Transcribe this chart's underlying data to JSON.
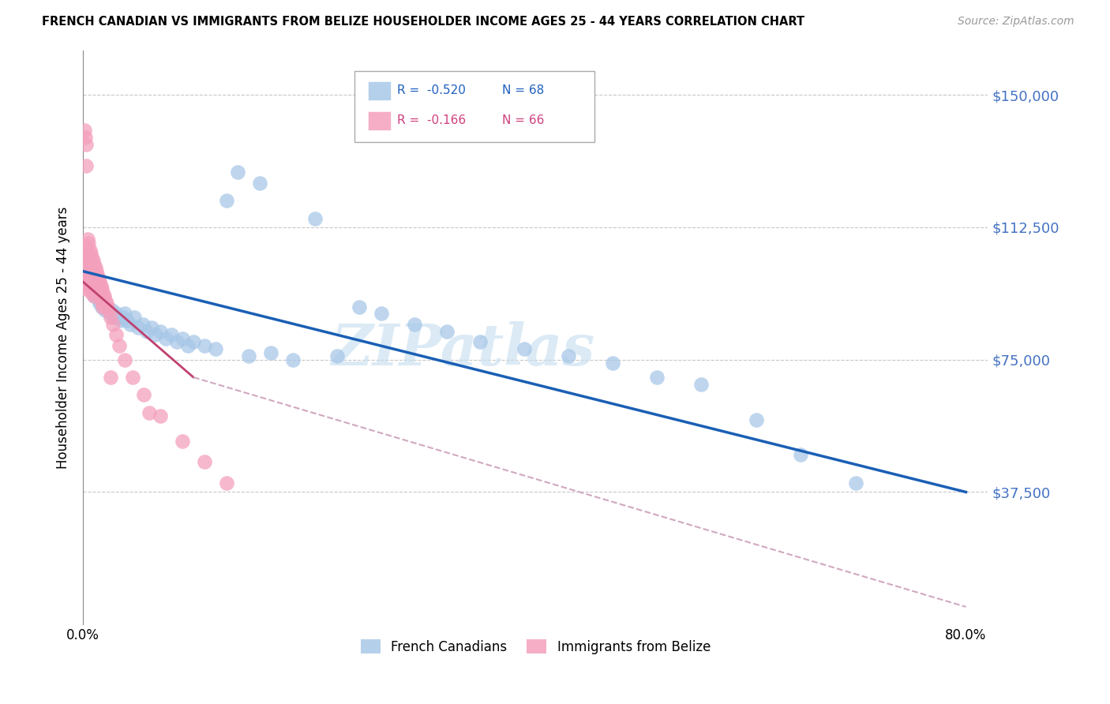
{
  "title": "FRENCH CANADIAN VS IMMIGRANTS FROM BELIZE HOUSEHOLDER INCOME AGES 25 - 44 YEARS CORRELATION CHART",
  "source": "Source: ZipAtlas.com",
  "ylabel": "Householder Income Ages 25 - 44 years",
  "y_tick_labels": [
    "$150,000",
    "$112,500",
    "$75,000",
    "$37,500"
  ],
  "y_tick_values": [
    150000,
    112500,
    75000,
    37500
  ],
  "ylim_max": 162500,
  "xlim_max": 0.82,
  "legend_blue_R": "-0.520",
  "legend_blue_N": "68",
  "legend_pink_R": "-0.166",
  "legend_pink_N": "66",
  "blue_color": "#a8c8e8",
  "pink_color": "#f4a0bc",
  "regression_blue_color": "#1a5fb4",
  "regression_pink_solid_color": "#c04070",
  "regression_pink_dashed_color": "#d0a8c0",
  "watermark_text": "ZIPatlas",
  "watermark_color": "#c8dff0",
  "blue_x": [
    0.002,
    0.003,
    0.004,
    0.005,
    0.005,
    0.006,
    0.007,
    0.008,
    0.008,
    0.009,
    0.01,
    0.01,
    0.011,
    0.012,
    0.013,
    0.014,
    0.015,
    0.016,
    0.017,
    0.018,
    0.02,
    0.022,
    0.024,
    0.026,
    0.028,
    0.03,
    0.032,
    0.034,
    0.036,
    0.038,
    0.04,
    0.043,
    0.046,
    0.05,
    0.054,
    0.058,
    0.062,
    0.066,
    0.07,
    0.075,
    0.08,
    0.085,
    0.09,
    0.095,
    0.1,
    0.11,
    0.12,
    0.13,
    0.14,
    0.15,
    0.16,
    0.17,
    0.19,
    0.21,
    0.23,
    0.25,
    0.27,
    0.3,
    0.33,
    0.36,
    0.4,
    0.44,
    0.48,
    0.52,
    0.56,
    0.61,
    0.65,
    0.7
  ],
  "blue_y": [
    100000,
    103000,
    105000,
    98000,
    101000,
    99000,
    97000,
    96000,
    95000,
    94000,
    93000,
    96000,
    95000,
    94000,
    93000,
    92000,
    91000,
    92000,
    90000,
    91000,
    89000,
    90000,
    88000,
    89000,
    87000,
    88000,
    87000,
    86000,
    87000,
    88000,
    86000,
    85000,
    87000,
    84000,
    85000,
    83000,
    84000,
    82000,
    83000,
    81000,
    82000,
    80000,
    81000,
    79000,
    80000,
    79000,
    78000,
    120000,
    128000,
    76000,
    125000,
    77000,
    75000,
    115000,
    76000,
    90000,
    88000,
    85000,
    83000,
    80000,
    78000,
    76000,
    74000,
    70000,
    68000,
    58000,
    48000,
    40000
  ],
  "pink_x": [
    0.001,
    0.001,
    0.002,
    0.002,
    0.002,
    0.003,
    0.003,
    0.003,
    0.004,
    0.004,
    0.004,
    0.005,
    0.005,
    0.005,
    0.006,
    0.006,
    0.006,
    0.007,
    0.007,
    0.007,
    0.008,
    0.008,
    0.008,
    0.009,
    0.009,
    0.01,
    0.01,
    0.01,
    0.011,
    0.011,
    0.012,
    0.012,
    0.013,
    0.013,
    0.014,
    0.014,
    0.015,
    0.015,
    0.016,
    0.016,
    0.017,
    0.017,
    0.018,
    0.018,
    0.019,
    0.02,
    0.021,
    0.022,
    0.023,
    0.025,
    0.027,
    0.03,
    0.033,
    0.038,
    0.045,
    0.055,
    0.07,
    0.09,
    0.11,
    0.13,
    0.001,
    0.002,
    0.003,
    0.003,
    0.025,
    0.06
  ],
  "pink_y": [
    100000,
    97000,
    105000,
    99000,
    96000,
    107000,
    102000,
    95000,
    109000,
    104000,
    98000,
    108000,
    103000,
    97000,
    106000,
    101000,
    96000,
    105000,
    100000,
    95000,
    104000,
    99000,
    94000,
    103000,
    98000,
    102000,
    98000,
    93000,
    101000,
    97000,
    100000,
    96000,
    99000,
    95000,
    98000,
    94000,
    97000,
    93000,
    96000,
    92000,
    95000,
    91000,
    94000,
    90000,
    93000,
    92000,
    91000,
    90000,
    89000,
    87000,
    85000,
    82000,
    79000,
    75000,
    70000,
    65000,
    59000,
    52000,
    46000,
    40000,
    140000,
    138000,
    136000,
    130000,
    70000,
    60000
  ]
}
